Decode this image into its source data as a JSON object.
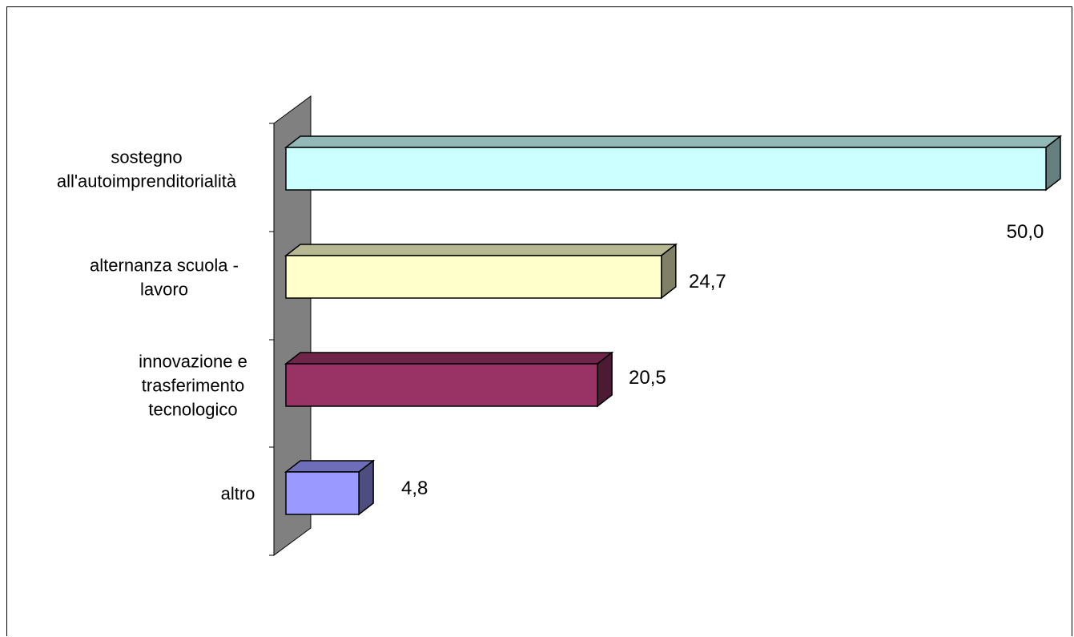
{
  "chart_data": {
    "type": "bar",
    "orientation": "horizontal",
    "three_d": true,
    "categories": [
      [
        "sostegno",
        "all'autoimprenditorialità"
      ],
      [
        "alternanza scuola -",
        "lavoro"
      ],
      [
        "innovazione e",
        "trasferimento",
        "tecnologico"
      ],
      [
        "altro"
      ]
    ],
    "values": [
      50.0,
      24.7,
      20.5,
      4.8
    ],
    "value_labels": [
      "50,0",
      "24,7",
      "20,5",
      "4,8"
    ],
    "colors": [
      "#ccffff",
      "#ffffcc",
      "#993366",
      "#9999ff"
    ],
    "title": "",
    "xlabel": "",
    "ylabel": "",
    "grid": false,
    "legend": "none",
    "xlim": [
      0,
      50
    ]
  }
}
